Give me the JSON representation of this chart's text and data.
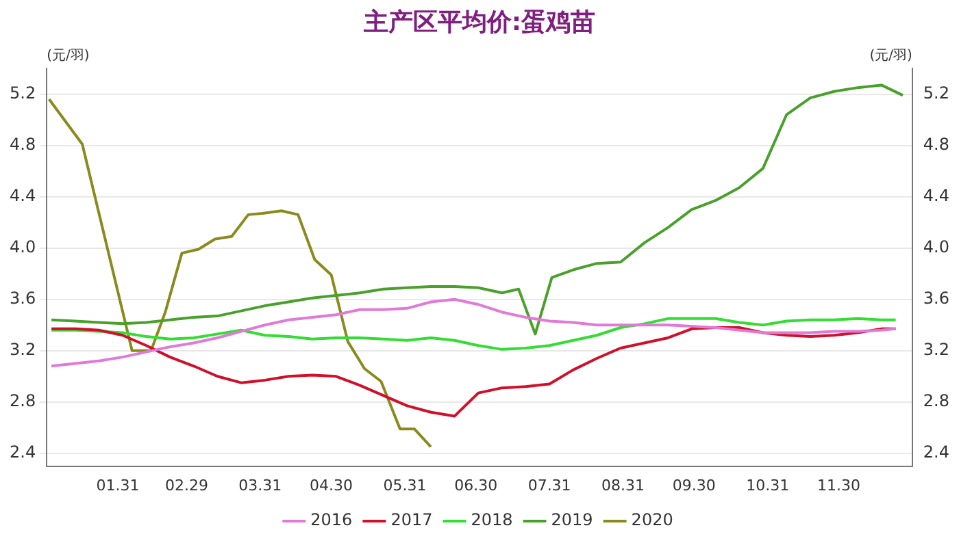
{
  "chart_data": {
    "type": "line",
    "title": "主产区平均价:蛋鸡苗",
    "ylabel": "(元/羽)",
    "y2label": "(元/羽)",
    "x": [
      "--01-03",
      "--01-13",
      "--01-23",
      "--02-02",
      "--02-12",
      "--02-22",
      "--03-03",
      "--03-13",
      "--03-23",
      "--04-02",
      "--04-12",
      "--04-22",
      "--05-02",
      "--05-12",
      "--05-22",
      "--06-01",
      "--06-11",
      "--06-21",
      "--07-01",
      "--07-11",
      "--07-21",
      "--07-31",
      "--08-10",
      "--08-20",
      "--08-30",
      "--09-09",
      "--09-19",
      "--09-29",
      "--10-09",
      "--10-19",
      "--10-29",
      "--11-08",
      "--11-18",
      "--11-28",
      "--12-08",
      "--12-18",
      "--12-24"
    ],
    "series": [
      {
        "name": "2016",
        "color": "#e07ad8",
        "values": [
          3.08,
          3.1,
          3.12,
          3.15,
          3.19,
          3.23,
          3.26,
          3.3,
          3.35,
          3.4,
          3.44,
          3.46,
          3.48,
          3.52,
          3.52,
          3.53,
          3.58,
          3.6,
          3.56,
          3.5,
          3.46,
          3.43,
          3.42,
          3.4,
          3.4,
          3.4,
          3.4,
          3.39,
          3.38,
          3.36,
          3.34,
          3.34,
          3.34,
          3.35,
          3.35,
          3.36,
          3.37
        ]
      },
      {
        "name": "2017",
        "color": "#d0102a",
        "values": [
          3.37,
          3.37,
          3.36,
          3.32,
          3.24,
          3.15,
          3.08,
          3.0,
          2.95,
          2.97,
          3.0,
          3.01,
          3.0,
          2.93,
          2.85,
          2.77,
          2.72,
          2.69,
          2.87,
          2.91,
          2.92,
          2.94,
          3.05,
          3.14,
          3.22,
          3.26,
          3.3,
          3.37,
          3.38,
          3.38,
          3.34,
          3.32,
          3.31,
          3.32,
          3.34,
          3.37,
          3.37
        ]
      },
      {
        "name": "2018",
        "color": "#33dd33",
        "values": [
          3.36,
          3.36,
          3.35,
          3.34,
          3.31,
          3.29,
          3.3,
          3.33,
          3.36,
          3.32,
          3.31,
          3.29,
          3.3,
          3.3,
          3.29,
          3.28,
          3.3,
          3.28,
          3.24,
          3.21,
          3.22,
          3.24,
          3.28,
          3.32,
          3.38,
          3.41,
          3.45,
          3.45,
          3.45,
          3.42,
          3.4,
          3.43,
          3.44,
          3.44,
          3.45,
          3.44,
          3.44
        ]
      },
      {
        "name": "2019",
        "color": "#4aa02c",
        "x": [
          "--01-03",
          "--01-13",
          "--01-23",
          "--02-02",
          "--02-12",
          "--02-22",
          "--03-03",
          "--03-13",
          "--03-23",
          "--04-02",
          "--04-12",
          "--04-22",
          "--05-02",
          "--05-12",
          "--05-22",
          "--06-01",
          "--06-11",
          "--06-21",
          "--07-01",
          "--07-11",
          "--07-18",
          "--07-25",
          "--08-01",
          "--08-10",
          "--08-20",
          "--08-30",
          "--09-09",
          "--09-19",
          "--09-29",
          "--10-09",
          "--10-19",
          "--10-29",
          "--11-08",
          "--11-18",
          "--11-28",
          "--12-08",
          "--12-18",
          "--12-27"
        ],
        "values": [
          3.44,
          3.43,
          3.42,
          3.41,
          3.42,
          3.44,
          3.46,
          3.47,
          3.51,
          3.55,
          3.58,
          3.61,
          3.63,
          3.65,
          3.68,
          3.69,
          3.7,
          3.7,
          3.69,
          3.65,
          3.68,
          3.33,
          3.77,
          3.83,
          3.88,
          3.89,
          4.04,
          4.16,
          4.3,
          4.37,
          4.47,
          4.62,
          5.04,
          5.17,
          5.22,
          5.25,
          5.27,
          5.19
        ]
      },
      {
        "name": "2020",
        "color": "#8a8a1e",
        "x": [
          "--01-02",
          "--01-16",
          "--02-06",
          "--02-14",
          "--02-20",
          "--02-27",
          "--03-05",
          "--03-12",
          "--03-19",
          "--03-26",
          "--04-01",
          "--04-09",
          "--04-16",
          "--04-23",
          "--04-30",
          "--05-07",
          "--05-14",
          "--05-21",
          "--05-29",
          "--06-04",
          "--06-11"
        ],
        "values": [
          5.16,
          4.81,
          3.2,
          3.2,
          3.5,
          3.96,
          3.99,
          4.07,
          4.09,
          4.26,
          4.27,
          4.29,
          4.26,
          3.91,
          3.79,
          3.27,
          3.06,
          2.96,
          2.59,
          2.59,
          2.45
        ]
      }
    ],
    "xlim": [
      "--01-01",
      "--12-31"
    ],
    "xticks": [
      {
        "value": "--01-31",
        "label": "01.31"
      },
      {
        "value": "--02-29",
        "label": "02.29"
      },
      {
        "value": "--03-31",
        "label": "03.31"
      },
      {
        "value": "--04-30",
        "label": "04.30"
      },
      {
        "value": "--05-31",
        "label": "05.31"
      },
      {
        "value": "--06-30",
        "label": "06.30"
      },
      {
        "value": "--07-31",
        "label": "07.31"
      },
      {
        "value": "--08-31",
        "label": "08.31"
      },
      {
        "value": "--09-30",
        "label": "09.30"
      },
      {
        "value": "--10-31",
        "label": "10.31"
      },
      {
        "value": "--11-30",
        "label": "11.30"
      }
    ],
    "ylim": [
      2.3,
      5.4
    ],
    "yticks": [
      2.4,
      2.8,
      3.2,
      3.6,
      {
        "value": 4,
        "label": "4.0"
      },
      4.4,
      4.8,
      5.2
    ],
    "y2lim": [
      2.3,
      5.4
    ],
    "y2ticks": [
      2.4,
      2.8,
      3.2,
      3.6,
      {
        "value": 4,
        "label": "4.0"
      },
      4.4,
      4.8,
      5.2
    ],
    "grid": "y",
    "legend": "bottom",
    "marker": "none",
    "line_style": "solid"
  }
}
